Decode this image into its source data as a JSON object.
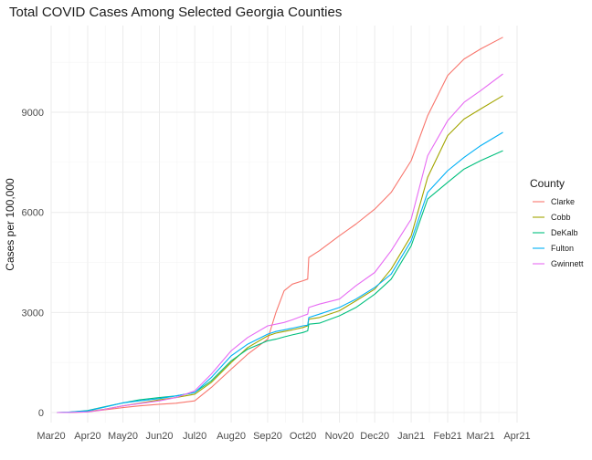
{
  "chart_data": {
    "type": "line",
    "title": "Total COVID Cases Among Selected Georgia Counties",
    "xlabel": "",
    "ylabel": "Cases per 100,000",
    "x_ticks": [
      "Mar20",
      "Apr20",
      "May20",
      "Jun20",
      "Jul20",
      "Aug20",
      "Sep20",
      "Oct20",
      "Nov20",
      "Dec20",
      "Jan21",
      "Feb21",
      "Mar21",
      "Apr21"
    ],
    "y_ticks": [
      0,
      3000,
      6000,
      9000
    ],
    "ylim": [
      -300,
      11600
    ],
    "xlim": [
      "2020-03-01",
      "2021-04-01"
    ],
    "grid": true,
    "legend": {
      "title": "County",
      "position": "right"
    },
    "x": [
      "2020-03-06",
      "2020-03-15",
      "2020-04-01",
      "2020-04-15",
      "2020-05-01",
      "2020-05-15",
      "2020-06-01",
      "2020-06-15",
      "2020-07-01",
      "2020-07-15",
      "2020-08-01",
      "2020-08-15",
      "2020-09-01",
      "2020-09-08",
      "2020-09-15",
      "2020-09-22",
      "2020-10-01",
      "2020-10-05",
      "2020-10-06",
      "2020-10-15",
      "2020-11-01",
      "2020-11-15",
      "2020-12-01",
      "2020-12-15",
      "2021-01-01",
      "2021-01-15",
      "2021-02-01",
      "2021-02-15",
      "2021-03-01",
      "2021-03-20"
    ],
    "series": [
      {
        "name": "Clarke",
        "color": "#F8766D",
        "values": [
          0,
          5,
          20,
          80,
          150,
          200,
          250,
          280,
          350,
          750,
          1300,
          1750,
          2200,
          3000,
          3650,
          3850,
          3950,
          4000,
          4650,
          4850,
          5300,
          5650,
          6100,
          6600,
          7550,
          8900,
          10100,
          10600,
          10900,
          11250
        ]
      },
      {
        "name": "Cobb",
        "color": "#A3A500",
        "values": [
          0,
          5,
          30,
          100,
          200,
          280,
          380,
          450,
          550,
          900,
          1500,
          1950,
          2300,
          2380,
          2430,
          2480,
          2550,
          2600,
          2800,
          2850,
          3050,
          3350,
          3700,
          4300,
          5300,
          7050,
          8300,
          8800,
          9100,
          9500
        ]
      },
      {
        "name": "DeKalb",
        "color": "#00BF7D",
        "values": [
          0,
          10,
          60,
          170,
          290,
          380,
          450,
          500,
          600,
          950,
          1550,
          1900,
          2150,
          2200,
          2270,
          2330,
          2400,
          2450,
          2650,
          2680,
          2900,
          3150,
          3550,
          4000,
          5000,
          6400,
          6900,
          7300,
          7550,
          7850
        ]
      },
      {
        "name": "Fulton",
        "color": "#00B0F6",
        "values": [
          0,
          10,
          50,
          160,
          290,
          350,
          420,
          500,
          600,
          1050,
          1700,
          2050,
          2350,
          2430,
          2480,
          2530,
          2600,
          2620,
          2850,
          2950,
          3150,
          3400,
          3750,
          4150,
          5150,
          6600,
          7250,
          7650,
          8000,
          8400
        ]
      },
      {
        "name": "Gwinnett",
        "color": "#E76BF3",
        "values": [
          0,
          5,
          20,
          90,
          200,
          270,
          350,
          450,
          650,
          1150,
          1850,
          2250,
          2600,
          2650,
          2700,
          2780,
          2900,
          2950,
          3150,
          3250,
          3400,
          3800,
          4200,
          4850,
          5800,
          7700,
          8750,
          9300,
          9650,
          10150
        ]
      }
    ]
  }
}
